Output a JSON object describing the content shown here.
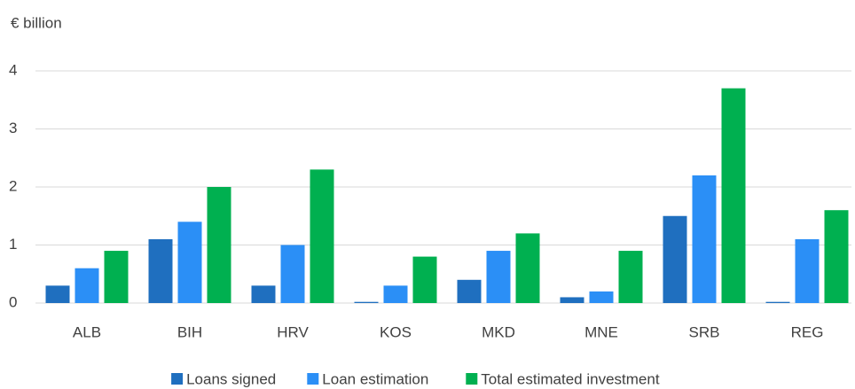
{
  "chart_data": {
    "type": "bar",
    "y_label": "€ billion",
    "categories": [
      "ALB",
      "BIH",
      "HRV",
      "KOS",
      "MKD",
      "MNE",
      "SRB",
      "REG"
    ],
    "series": [
      {
        "name": "Loans signed",
        "color": "#1f6fbf",
        "values": [
          0.3,
          1.1,
          0.3,
          0.02,
          0.4,
          0.1,
          1.5,
          0.02
        ]
      },
      {
        "name": "Loan estimation",
        "color": "#2b8ff6",
        "values": [
          0.6,
          1.4,
          1.0,
          0.3,
          0.9,
          0.2,
          2.2,
          1.1
        ]
      },
      {
        "name": "Total estimated investment",
        "color": "#00b050",
        "values": [
          0.9,
          2.0,
          2.3,
          0.8,
          1.2,
          0.9,
          3.7,
          1.6
        ]
      }
    ],
    "ylim": [
      0,
      4
    ],
    "yticks": [
      0,
      1,
      2,
      3,
      4
    ],
    "grid": true,
    "legend": "bottom"
  }
}
